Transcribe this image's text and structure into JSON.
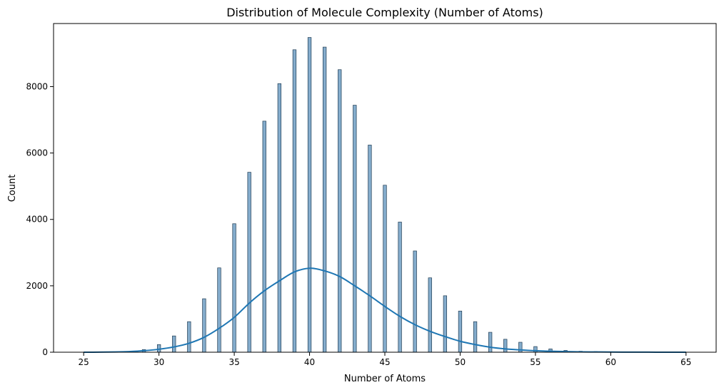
{
  "chart_data": {
    "type": "bar",
    "title": "Distribution of Molecule Complexity (Number of Atoms)",
    "xlabel": "Number of Atoms",
    "ylabel": "Count",
    "xlim": [
      23.0,
      67.0
    ],
    "ylim": [
      0,
      9900
    ],
    "xticks": [
      25,
      30,
      35,
      40,
      45,
      50,
      55,
      60,
      65
    ],
    "yticks": [
      0,
      2000,
      4000,
      6000,
      8000
    ],
    "grid": false,
    "colors": {
      "bar": "#6e9ec3",
      "bar_edge": "#1f3b52",
      "kde": "#1f77b4"
    },
    "histogram": {
      "x": [
        28,
        29,
        30,
        31,
        32,
        33,
        34,
        35,
        36,
        37,
        38,
        39,
        40,
        41,
        42,
        43,
        44,
        45,
        46,
        47,
        48,
        49,
        50,
        51,
        52,
        53,
        54,
        55,
        56,
        57,
        58,
        59,
        60
      ],
      "values": [
        15,
        80,
        230,
        490,
        920,
        1610,
        2540,
        3870,
        5420,
        6960,
        8090,
        9110,
        9480,
        9190,
        8510,
        7440,
        6240,
        5030,
        3920,
        3050,
        2240,
        1700,
        1240,
        920,
        600,
        390,
        300,
        170,
        100,
        55,
        30,
        20,
        10
      ]
    },
    "kde": {
      "x": [
        25,
        26,
        27,
        28,
        29,
        30,
        31,
        32,
        33,
        34,
        35,
        36,
        37,
        38,
        39,
        40,
        41,
        42,
        43,
        44,
        45,
        46,
        47,
        48,
        49,
        50,
        51,
        52,
        53,
        54,
        55,
        56,
        57,
        58,
        59,
        60,
        61,
        62,
        63,
        64,
        65
      ],
      "values": [
        0,
        2,
        8,
        20,
        45,
        90,
        160,
        270,
        450,
        720,
        1050,
        1480,
        1850,
        2150,
        2420,
        2530,
        2450,
        2280,
        2000,
        1700,
        1380,
        1080,
        830,
        630,
        470,
        330,
        230,
        150,
        100,
        70,
        45,
        30,
        20,
        12,
        8,
        5,
        3,
        2,
        1,
        0,
        0
      ]
    }
  }
}
